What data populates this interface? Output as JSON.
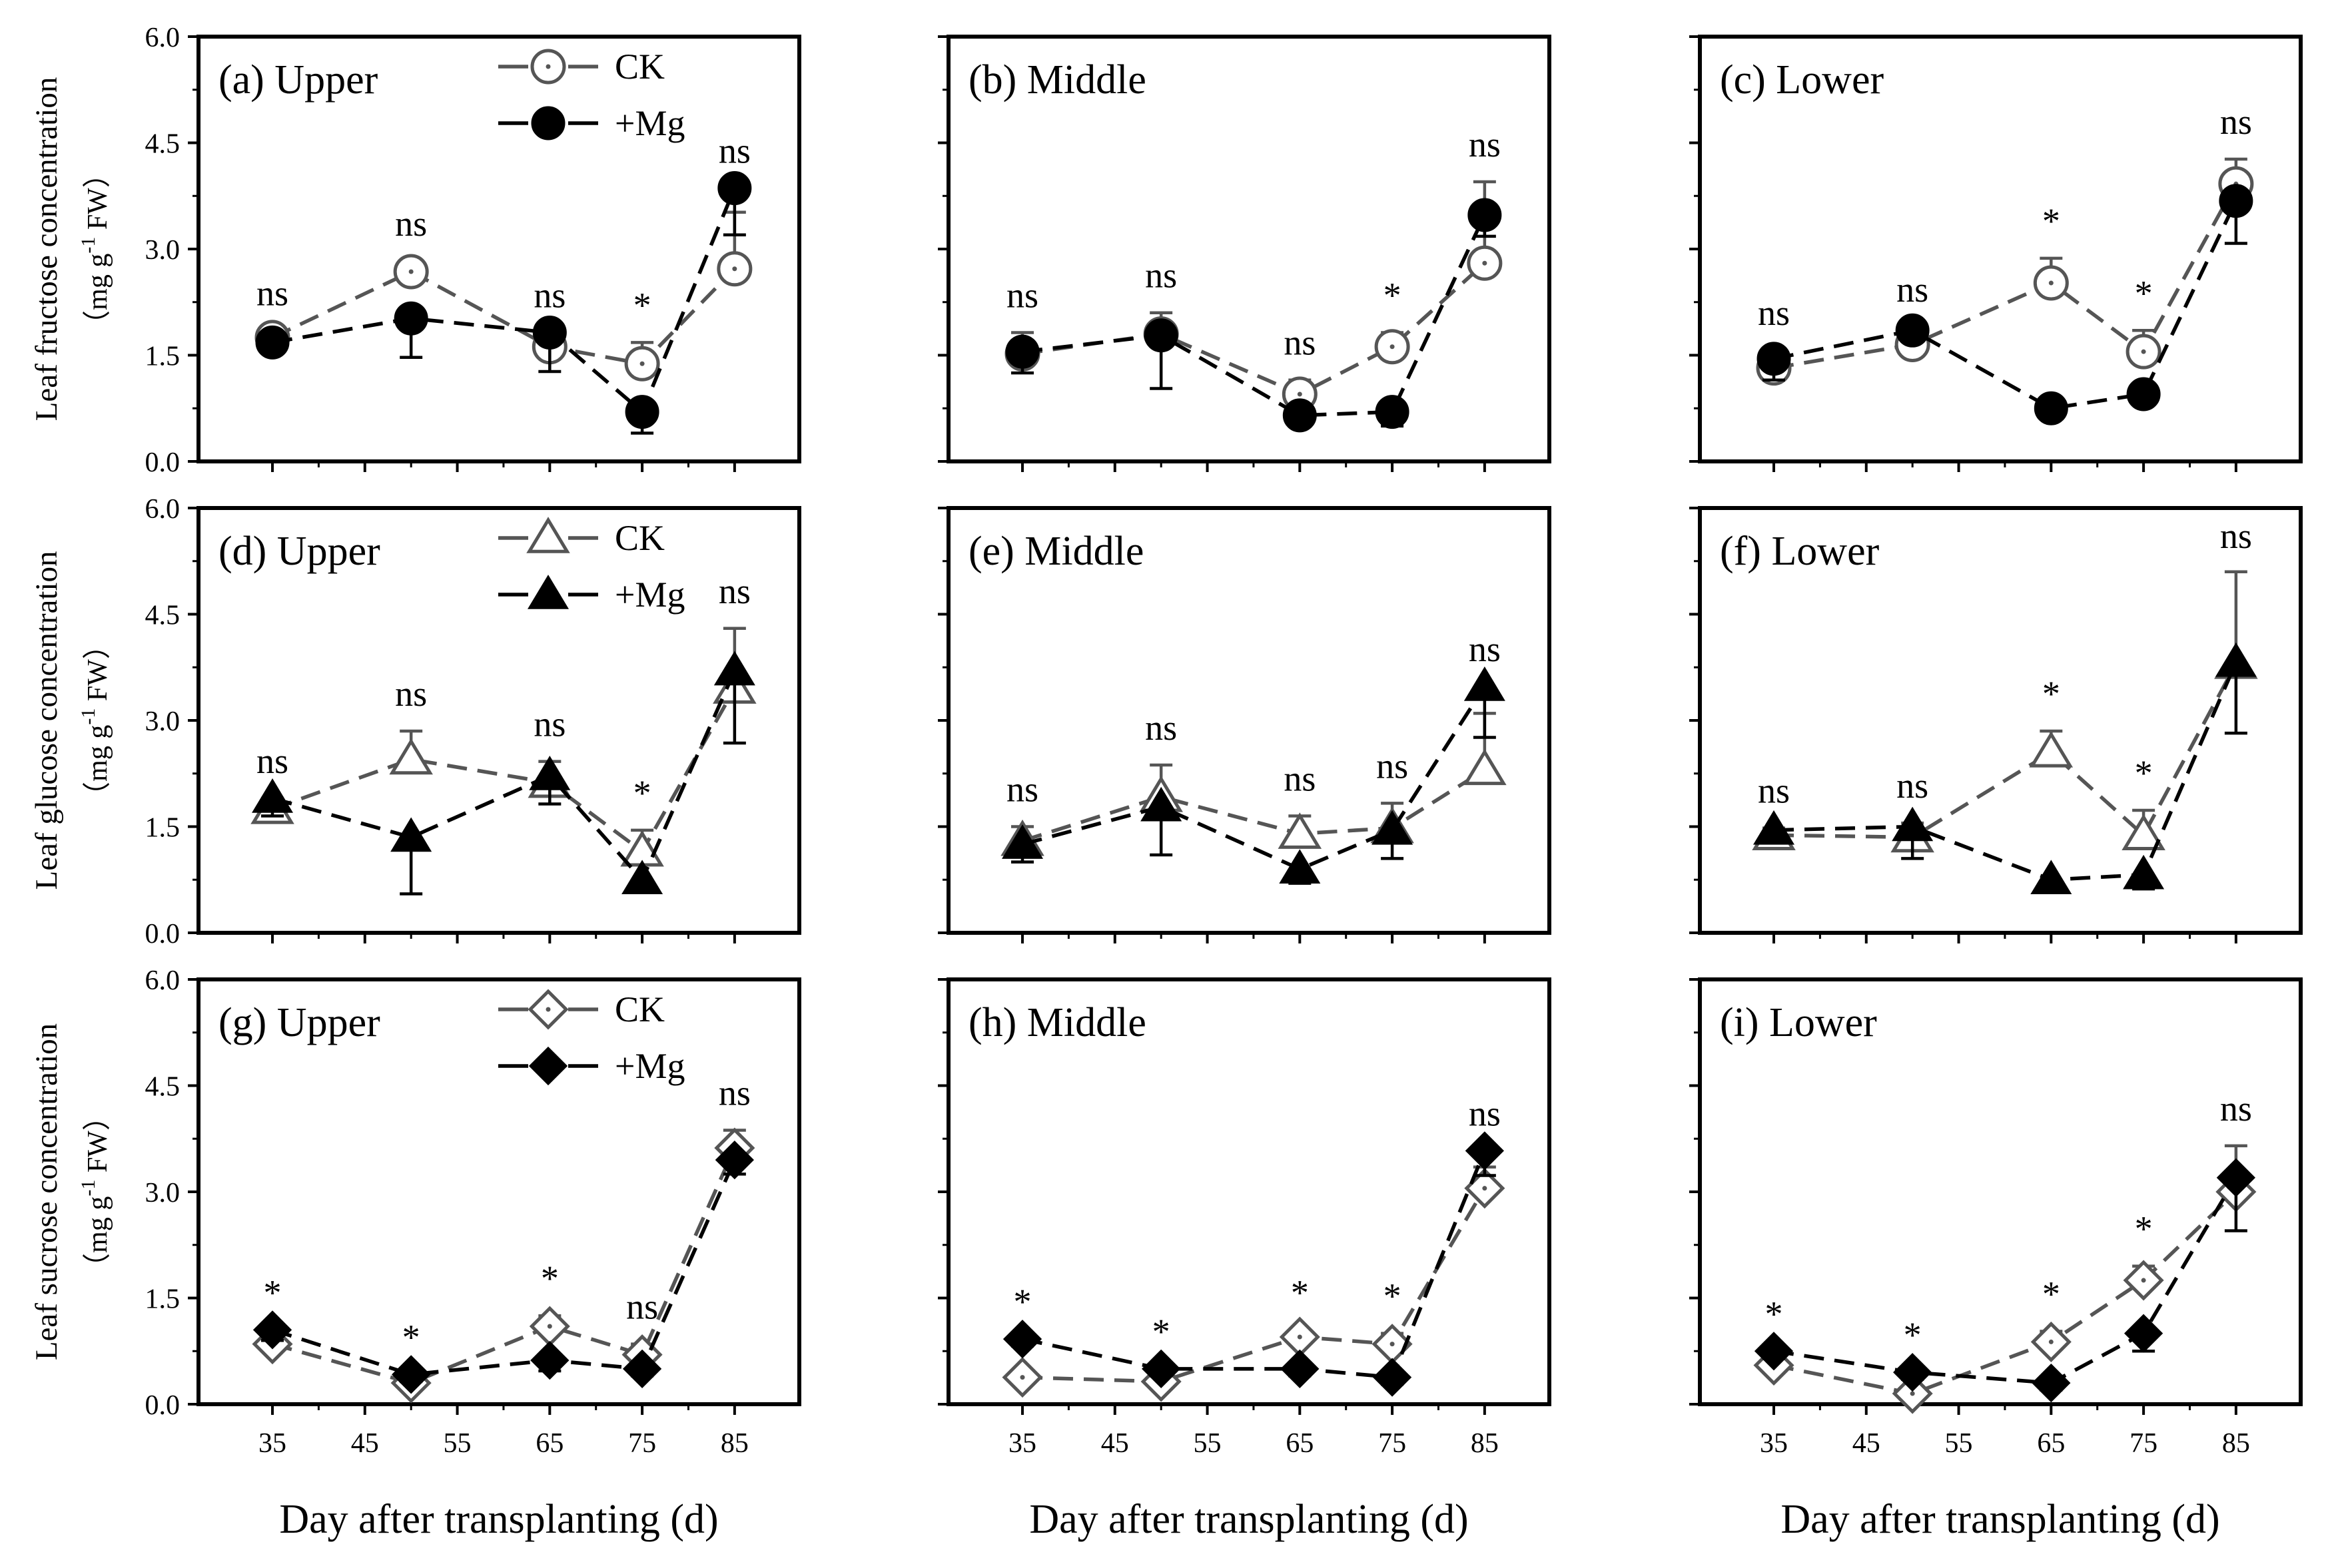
{
  "figure": {
    "xlabel": "Day after transplanting (d)",
    "ylabels": [
      {
        "line1": "Leaf fructose concentration",
        "unit_prefix": "（mg g",
        "unit_sup": "-1",
        "unit_suffix": " FW）"
      },
      {
        "line1": "Leaf glucose concentration",
        "unit_prefix": "（mg g",
        "unit_sup": "-1",
        "unit_suffix": " FW）"
      },
      {
        "line1": "Leaf sucrose concentration",
        "unit_prefix": "（mg g",
        "unit_sup": "-1",
        "unit_suffix": " FW）"
      }
    ],
    "legend_labels": [
      "CK",
      "+Mg"
    ]
  },
  "colors": {
    "ck_line": "#555555",
    "mg_line": "#000000",
    "axis": "#000000",
    "marker_fill": "#000000",
    "open_fill": "#ffffff"
  },
  "chart_data": [
    {
      "panel": "a",
      "title": "(a) Upper",
      "type": "line",
      "metric": "fructose",
      "marker": "circle",
      "show_legend": true,
      "x": [
        35,
        50,
        65,
        75,
        85
      ],
      "xlim": [
        27,
        92
      ],
      "ylim": [
        0,
        6
      ],
      "series": [
        {
          "name": "CK",
          "values": [
            1.75,
            2.68,
            1.62,
            1.38,
            2.72
          ],
          "errors": [
            0.1,
            0.15,
            0.2,
            0.3,
            0.8
          ]
        },
        {
          "name": "+Mg",
          "values": [
            1.68,
            2.02,
            1.82,
            0.7,
            3.86
          ],
          "errors": [
            0.08,
            0.55,
            0.55,
            0.3,
            0.66
          ]
        }
      ],
      "sig": [
        "ns",
        "ns",
        "ns",
        "*",
        "ns"
      ]
    },
    {
      "panel": "b",
      "title": "(b) Middle",
      "type": "line",
      "metric": "fructose",
      "marker": "circle",
      "show_legend": false,
      "x": [
        35,
        50,
        65,
        75,
        85
      ],
      "xlim": [
        27,
        92
      ],
      "ylim": [
        0,
        6
      ],
      "series": [
        {
          "name": "CK",
          "values": [
            1.52,
            1.8,
            0.95,
            1.62,
            2.8
          ],
          "errors": [
            0.3,
            0.3,
            0.2,
            0.2,
            1.15
          ]
        },
        {
          "name": "+Mg",
          "values": [
            1.55,
            1.78,
            0.65,
            0.7,
            3.48
          ],
          "errors": [
            0.3,
            0.75,
            0.15,
            0.2,
            0.3
          ]
        }
      ],
      "sig": [
        "ns",
        "ns",
        "ns",
        "*",
        "ns"
      ]
    },
    {
      "panel": "c",
      "title": "(c) Lower",
      "type": "line",
      "metric": "fructose",
      "marker": "circle",
      "show_legend": false,
      "x": [
        35,
        50,
        65,
        75,
        85
      ],
      "xlim": [
        27,
        92
      ],
      "ylim": [
        0,
        6
      ],
      "series": [
        {
          "name": "CK",
          "values": [
            1.32,
            1.65,
            2.52,
            1.55,
            3.92
          ],
          "errors": [
            0.25,
            0.25,
            0.35,
            0.3,
            0.35
          ]
        },
        {
          "name": "+Mg",
          "values": [
            1.45,
            1.85,
            0.75,
            0.95,
            3.68
          ],
          "errors": [
            0.3,
            0.15,
            0.15,
            0.1,
            0.6
          ]
        }
      ],
      "sig": [
        "ns",
        "ns",
        "*",
        "*",
        "ns"
      ]
    },
    {
      "panel": "d",
      "title": "(d) Upper",
      "type": "line",
      "metric": "glucose",
      "marker": "triangle",
      "show_legend": true,
      "x": [
        35,
        50,
        65,
        75,
        85
      ],
      "xlim": [
        27,
        92
      ],
      "ylim": [
        0,
        6
      ],
      "series": [
        {
          "name": "CK",
          "values": [
            1.75,
            2.45,
            2.12,
            1.15,
            3.45
          ],
          "errors": [
            0.15,
            0.4,
            0.3,
            0.3,
            0.85
          ]
        },
        {
          "name": "+Mg",
          "values": [
            1.9,
            1.35,
            2.22,
            0.75,
            3.7
          ],
          "errors": [
            0.25,
            0.8,
            0.4,
            0.15,
            1.02
          ]
        }
      ],
      "sig": [
        "ns",
        "ns",
        "ns",
        "*",
        "ns"
      ]
    },
    {
      "panel": "e",
      "title": "(e) Middle",
      "type": "line",
      "metric": "glucose",
      "marker": "triangle",
      "show_legend": false,
      "x": [
        35,
        50,
        65,
        75,
        85
      ],
      "xlim": [
        27,
        92
      ],
      "ylim": [
        0,
        6
      ],
      "series": [
        {
          "name": "CK",
          "values": [
            1.3,
            1.92,
            1.4,
            1.48,
            2.3
          ],
          "errors": [
            0.2,
            0.45,
            0.25,
            0.35,
            0.8
          ]
        },
        {
          "name": "+Mg",
          "values": [
            1.25,
            1.78,
            0.9,
            1.45,
            3.48
          ],
          "errors": [
            0.25,
            0.68,
            0.2,
            0.4,
            0.72
          ]
        }
      ],
      "sig": [
        "ns",
        "ns",
        "ns",
        "ns",
        "ns"
      ]
    },
    {
      "panel": "f",
      "title": "(f) Lower",
      "type": "line",
      "metric": "glucose",
      "marker": "triangle",
      "show_legend": false,
      "x": [
        35,
        50,
        65,
        75,
        85
      ],
      "xlim": [
        27,
        92
      ],
      "ylim": [
        0,
        6
      ],
      "series": [
        {
          "name": "CK",
          "values": [
            1.38,
            1.35,
            2.55,
            1.38,
            3.8
          ],
          "errors": [
            0.1,
            0.2,
            0.3,
            0.35,
            1.3
          ]
        },
        {
          "name": "+Mg",
          "values": [
            1.45,
            1.5,
            0.75,
            0.82,
            3.82
          ],
          "errors": [
            0.15,
            0.45,
            0.1,
            0.2,
            1.0
          ]
        }
      ],
      "sig": [
        "ns",
        "ns",
        "*",
        "*",
        "ns"
      ]
    },
    {
      "panel": "g",
      "title": "(g) Upper",
      "type": "line",
      "metric": "sucrose",
      "marker": "diamond",
      "show_legend": true,
      "x": [
        35,
        50,
        65,
        75,
        85
      ],
      "xlim": [
        27,
        92
      ],
      "ylim": [
        0,
        6
      ],
      "series": [
        {
          "name": "CK",
          "values": [
            0.85,
            0.3,
            1.1,
            0.7,
            3.62
          ],
          "errors": [
            0.1,
            0.1,
            0.15,
            0.15,
            0.25
          ]
        },
        {
          "name": "+Mg",
          "values": [
            1.05,
            0.42,
            0.62,
            0.5,
            3.45
          ],
          "errors": [
            0.15,
            0.1,
            0.15,
            0.1,
            0.2
          ]
        }
      ],
      "sig": [
        "*",
        "*",
        "*",
        "ns",
        "ns"
      ]
    },
    {
      "panel": "h",
      "title": "(h) Middle",
      "type": "line",
      "metric": "sucrose",
      "marker": "diamond",
      "show_legend": false,
      "x": [
        35,
        50,
        65,
        75,
        85
      ],
      "xlim": [
        27,
        92
      ],
      "ylim": [
        0,
        6
      ],
      "series": [
        {
          "name": "CK",
          "values": [
            0.38,
            0.32,
            0.95,
            0.85,
            3.05
          ],
          "errors": [
            0.1,
            0.1,
            0.1,
            0.15,
            0.3
          ]
        },
        {
          "name": "+Mg",
          "values": [
            0.92,
            0.5,
            0.5,
            0.38,
            3.58
          ],
          "errors": [
            0.1,
            0.1,
            0.1,
            0.1,
            0.35
          ]
        }
      ],
      "sig": [
        "*",
        "*",
        "*",
        "*",
        "ns"
      ]
    },
    {
      "panel": "i",
      "title": "(i) Lower",
      "type": "line",
      "metric": "sucrose",
      "marker": "diamond",
      "show_legend": false,
      "x": [
        35,
        50,
        65,
        75,
        85
      ],
      "xlim": [
        27,
        92
      ],
      "ylim": [
        0,
        6
      ],
      "series": [
        {
          "name": "CK",
          "values": [
            0.55,
            0.15,
            0.88,
            1.75,
            3.0
          ],
          "errors": [
            0.1,
            0.1,
            0.15,
            0.2,
            0.65
          ]
        },
        {
          "name": "+Mg",
          "values": [
            0.75,
            0.45,
            0.3,
            1.0,
            3.2
          ],
          "errors": [
            0.1,
            0.1,
            0.1,
            0.25,
            0.75
          ]
        }
      ],
      "sig": [
        "*",
        "*",
        "*",
        "*",
        "ns"
      ]
    }
  ],
  "y_ticks": [
    0.0,
    1.5,
    3.0,
    4.5,
    6.0
  ],
  "y_tick_labels": [
    "0.0",
    "1.5",
    "3.0",
    "4.5",
    "6.0"
  ],
  "x_ticks": [
    35,
    45,
    55,
    65,
    75,
    85
  ],
  "x_tick_labels": [
    "35",
    "45",
    "55",
    "65",
    "75",
    "85"
  ]
}
